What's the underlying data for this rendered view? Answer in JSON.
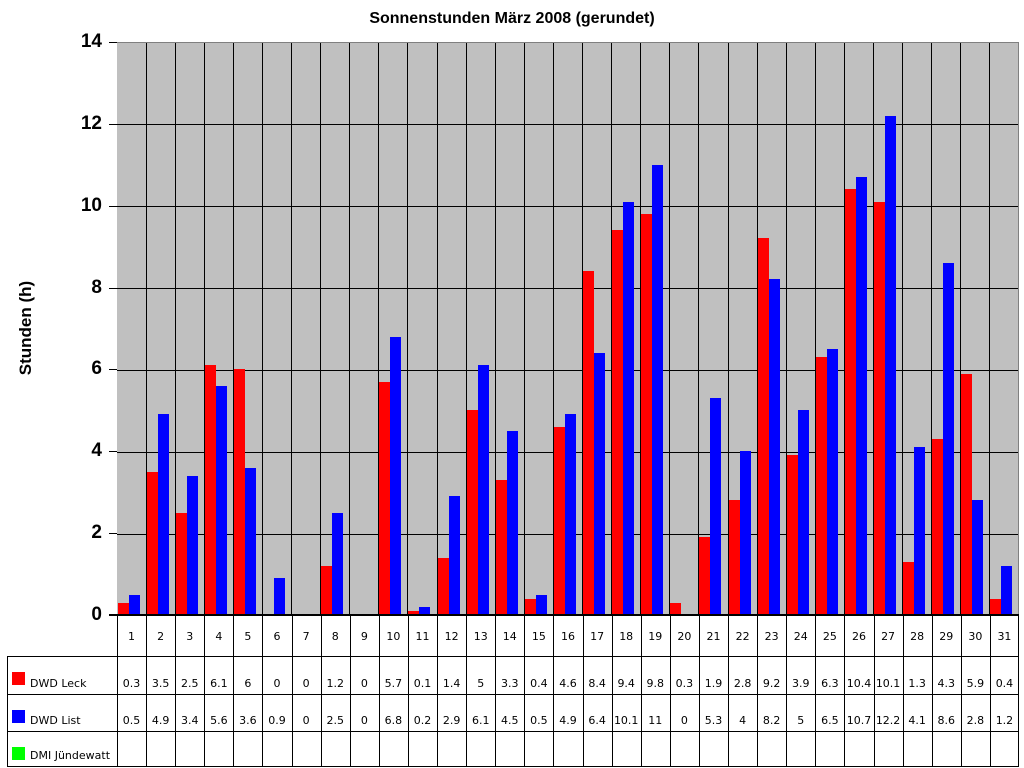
{
  "chart_data": {
    "type": "bar",
    "title": "Sonnenstunden März 2008 (gerundet)",
    "xlabel": "",
    "ylabel": "Stunden (h)",
    "ylim": [
      0,
      14
    ],
    "yticks": [
      0,
      2,
      4,
      6,
      8,
      10,
      12,
      14
    ],
    "grid": true,
    "legend_position": "table-left",
    "categories": [
      "1",
      "2",
      "3",
      "4",
      "5",
      "6",
      "7",
      "8",
      "9",
      "10",
      "11",
      "12",
      "13",
      "14",
      "15",
      "16",
      "17",
      "18",
      "19",
      "20",
      "21",
      "22",
      "23",
      "24",
      "25",
      "26",
      "27",
      "28",
      "29",
      "30",
      "31"
    ],
    "series": [
      {
        "name": "DWD Leck",
        "color": "#ff0000",
        "values": [
          0.3,
          3.5,
          2.5,
          6.1,
          6,
          0,
          0,
          1.2,
          0,
          5.7,
          0.1,
          1.4,
          5,
          3.3,
          0.4,
          4.6,
          8.4,
          9.4,
          9.8,
          0.3,
          1.9,
          2.8,
          9.2,
          3.9,
          6.3,
          10.4,
          10.1,
          1.3,
          4.3,
          5.9,
          0.4
        ]
      },
      {
        "name": "DWD List",
        "color": "#0000ff",
        "values": [
          0.5,
          4.9,
          3.4,
          5.6,
          3.6,
          0.9,
          0,
          2.5,
          0,
          6.8,
          0.2,
          2.9,
          6.1,
          4.5,
          0.5,
          4.9,
          6.4,
          10.1,
          11,
          0,
          5.3,
          4,
          8.2,
          5,
          6.5,
          10.7,
          12.2,
          4.1,
          8.6,
          2.8,
          1.2
        ]
      },
      {
        "name": "DMI Jündewatt",
        "color": "#00ff00",
        "values": [
          null,
          null,
          null,
          null,
          null,
          null,
          null,
          null,
          null,
          null,
          null,
          null,
          null,
          null,
          null,
          null,
          null,
          null,
          null,
          null,
          null,
          null,
          null,
          null,
          null,
          null,
          null,
          null,
          null,
          null,
          null
        ]
      }
    ],
    "table_labels": {
      "leck": [
        "0.3",
        "3.5",
        "2.5",
        "6.1",
        "6",
        "0",
        "0",
        "1.2",
        "0",
        "5.7",
        "0.1",
        "1.4",
        "5",
        "3.3",
        "0.4",
        "4.6",
        "8.4",
        "9.4",
        "9.8",
        "0.3",
        "1.9",
        "2.8",
        "9.2",
        "3.9",
        "6.3",
        "10.4",
        "10.1",
        "1.3",
        "4.3",
        "5.9",
        "0.4"
      ],
      "list": [
        "0.5",
        "4.9",
        "3.4",
        "5.6",
        "3.6",
        "0.9",
        "0",
        "2.5",
        "0",
        "6.8",
        "0.2",
        "2.9",
        "6.1",
        "4.5",
        "0.5",
        "4.9",
        "6.4",
        "10.1",
        "11",
        "0",
        "5.3",
        "4",
        "8.2",
        "5",
        "6.5",
        "10.7",
        "12.2",
        "4.1",
        "8.6",
        "2.8",
        "1.2"
      ]
    },
    "colors": {
      "plot_bg": "#c0c0c0",
      "grid": "#000000"
    }
  }
}
